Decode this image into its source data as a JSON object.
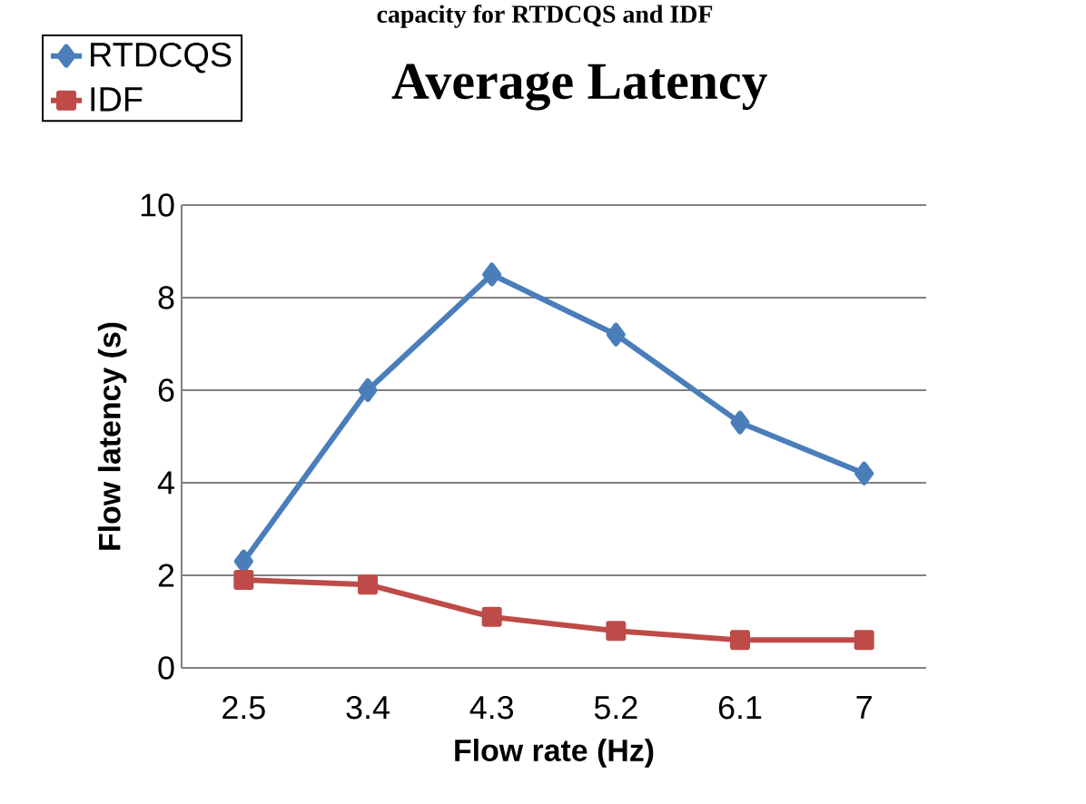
{
  "chart_data": {
    "type": "line",
    "title": "Average Latency",
    "annotations": [
      "capacity for RTDCQS and IDF"
    ],
    "xlabel": "Flow rate (Hz)",
    "ylabel": "Flow latency (s)",
    "categories": [
      "2.5",
      "3.4",
      "4.3",
      "5.2",
      "6.1",
      "7"
    ],
    "series": [
      {
        "name": "RTDCQS",
        "color": "#4a7ebb",
        "marker": "diamond",
        "values": [
          2.3,
          6.0,
          8.5,
          7.2,
          5.3,
          4.2
        ]
      },
      {
        "name": "IDF",
        "color": "#be4b48",
        "marker": "square",
        "values": [
          1.9,
          1.8,
          1.1,
          0.8,
          0.6,
          0.6
        ]
      }
    ],
    "ylim": [
      0,
      10
    ],
    "yticks": [
      0,
      2,
      4,
      6,
      8,
      10
    ],
    "grid": "y",
    "legend": "top left",
    "line_style": "solid"
  }
}
